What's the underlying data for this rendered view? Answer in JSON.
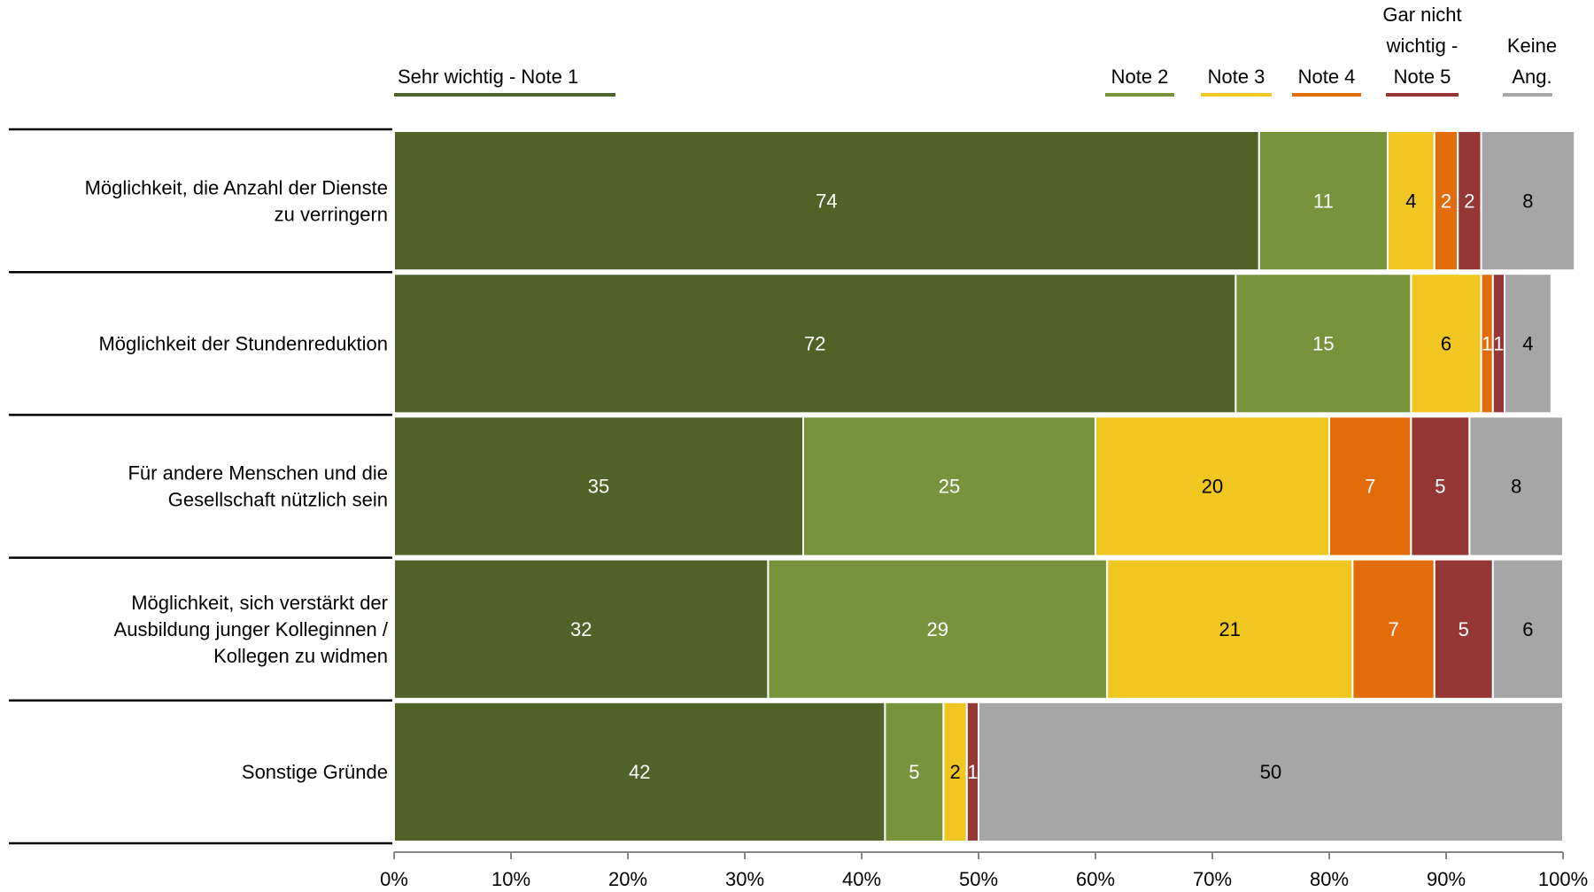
{
  "chart_data": {
    "type": "bar",
    "orientation": "horizontal",
    "stacked": true,
    "categories": [
      [
        "Möglichkeit, die Anzahl der Dienste",
        "zu verringern"
      ],
      [
        "Möglichkeit der Stundenreduktion"
      ],
      [
        "Für andere Menschen und die",
        "Gesellschaft nützlich sein"
      ],
      [
        "Möglichkeit, sich verstärkt der",
        "Ausbildung junger Kolleginnen /",
        "Kollegen zu widmen"
      ],
      [
        "Sonstige Gründe"
      ]
    ],
    "series": [
      {
        "name": [
          "Sehr wichtig - Note 1"
        ],
        "color": "#4f6328",
        "label_color": "#ffffff",
        "values": [
          74,
          72,
          35,
          32,
          42
        ]
      },
      {
        "name": [
          "Note 2"
        ],
        "color": "#77933c",
        "label_color": "#ffffff",
        "values": [
          11,
          15,
          25,
          29,
          5
        ]
      },
      {
        "name": [
          "Note 3"
        ],
        "color": "#f0c620",
        "label_color": "#000000",
        "values": [
          4,
          6,
          20,
          21,
          2
        ]
      },
      {
        "name": [
          "Note 4"
        ],
        "color": "#e36c0a",
        "label_color": "#ffffff",
        "values": [
          2,
          1,
          7,
          7,
          0
        ]
      },
      {
        "name": [
          "Gar nicht",
          "wichtig -",
          "Note 5"
        ],
        "color": "#953735",
        "label_color": "#ffffff",
        "values": [
          2,
          1,
          5,
          5,
          1
        ]
      },
      {
        "name": [
          "Keine",
          "Ang."
        ],
        "color": "#a6a6a6",
        "label_color": "#000000",
        "values": [
          8,
          4,
          8,
          6,
          50
        ]
      }
    ],
    "xlim": [
      0,
      100
    ],
    "x_ticks": [
      "0%",
      "10%",
      "20%",
      "30%",
      "40%",
      "50%",
      "60%",
      "70%",
      "80%",
      "90%",
      "100%"
    ],
    "legend_position": "top",
    "grid": false
  }
}
